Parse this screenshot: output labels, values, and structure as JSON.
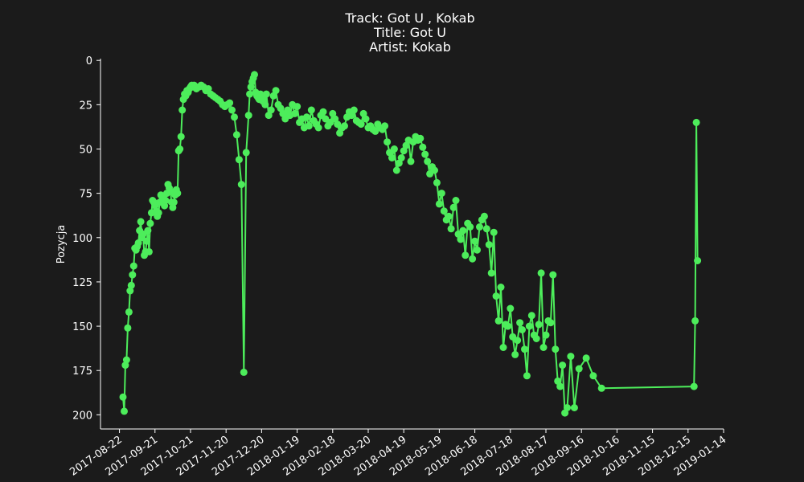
{
  "chart_data": {
    "type": "line",
    "title_lines": [
      "Track:  Got U  , Kokab",
      "Title:  Got U",
      "Artist:  Kokab"
    ],
    "xlabel": "",
    "ylabel": "Pozycja",
    "y_inverted": true,
    "ylim": [
      208,
      -1
    ],
    "yticks": [
      0,
      25,
      50,
      75,
      100,
      125,
      150,
      175,
      200
    ],
    "xlim": [
      "2017-08-06",
      "2019-01-14"
    ],
    "xticks": [
      "2017-08-22",
      "2017-09-21",
      "2017-10-21",
      "2017-11-20",
      "2017-12-20",
      "2018-01-19",
      "2018-02-18",
      "2018-03-20",
      "2018-04-19",
      "2018-05-19",
      "2018-06-18",
      "2018-07-18",
      "2018-08-17",
      "2018-09-16",
      "2018-10-16",
      "2018-11-15",
      "2018-12-15",
      "2019-01-14"
    ],
    "line_color": "#4ded5b",
    "grid": false,
    "series": [
      {
        "name": "Pozycja",
        "dates": [
          "2017-08-25",
          "2017-08-26",
          "2017-08-27",
          "2017-08-28",
          "2017-08-29",
          "2017-08-30",
          "2017-08-31",
          "2017-09-01",
          "2017-09-02",
          "2017-09-03",
          "2017-09-04",
          "2017-09-05",
          "2017-09-06",
          "2017-09-07",
          "2017-09-08",
          "2017-09-09",
          "2017-09-10",
          "2017-09-11",
          "2017-09-12",
          "2017-09-13",
          "2017-09-14",
          "2017-09-15",
          "2017-09-16",
          "2017-09-17",
          "2017-09-18",
          "2017-09-19",
          "2017-09-20",
          "2017-09-21",
          "2017-09-22",
          "2017-09-23",
          "2017-09-24",
          "2017-09-25",
          "2017-09-26",
          "2017-09-27",
          "2017-09-28",
          "2017-09-29",
          "2017-09-30",
          "2017-10-01",
          "2017-10-02",
          "2017-10-03",
          "2017-10-04",
          "2017-10-05",
          "2017-10-06",
          "2017-10-07",
          "2017-10-08",
          "2017-10-09",
          "2017-10-10",
          "2017-10-11",
          "2017-10-12",
          "2017-10-13",
          "2017-10-14",
          "2017-10-15",
          "2017-10-16",
          "2017-10-17",
          "2017-10-18",
          "2017-10-19",
          "2017-10-20",
          "2017-10-21",
          "2017-10-22",
          "2017-10-23",
          "2017-10-24",
          "2017-10-25",
          "2017-10-26",
          "2017-10-28",
          "2017-10-30",
          "2017-11-01",
          "2017-11-03",
          "2017-11-05",
          "2017-11-07",
          "2017-11-09",
          "2017-11-11",
          "2017-11-13",
          "2017-11-15",
          "2017-11-17",
          "2017-11-19",
          "2017-11-21",
          "2017-11-23",
          "2017-11-25",
          "2017-11-27",
          "2017-11-29",
          "2017-12-01",
          "2017-12-03",
          "2017-12-05",
          "2017-12-07",
          "2017-12-09",
          "2017-12-10",
          "2017-12-11",
          "2017-12-12",
          "2017-12-13",
          "2017-12-14",
          "2017-12-15",
          "2017-12-16",
          "2017-12-17",
          "2017-12-18",
          "2017-12-19",
          "2017-12-20",
          "2017-12-21",
          "2017-12-22",
          "2017-12-23",
          "2017-12-24",
          "2017-12-26",
          "2017-12-28",
          "2017-12-30",
          "2018-01-01",
          "2018-01-03",
          "2018-01-05",
          "2018-01-07",
          "2018-01-09",
          "2018-01-11",
          "2018-01-13",
          "2018-01-15",
          "2018-01-17",
          "2018-01-19",
          "2018-01-21",
          "2018-01-23",
          "2018-01-25",
          "2018-01-27",
          "2018-01-29",
          "2018-01-31",
          "2018-02-02",
          "2018-02-04",
          "2018-02-06",
          "2018-02-08",
          "2018-02-10",
          "2018-02-12",
          "2018-02-14",
          "2018-02-16",
          "2018-02-18",
          "2018-02-20",
          "2018-02-22",
          "2018-02-24",
          "2018-02-26",
          "2018-02-28",
          "2018-03-02",
          "2018-03-04",
          "2018-03-06",
          "2018-03-08",
          "2018-03-10",
          "2018-03-12",
          "2018-03-14",
          "2018-03-16",
          "2018-03-18",
          "2018-03-20",
          "2018-03-22",
          "2018-03-24",
          "2018-03-26",
          "2018-03-28",
          "2018-03-30",
          "2018-04-01",
          "2018-04-03",
          "2018-04-05",
          "2018-04-07",
          "2018-04-09",
          "2018-04-11",
          "2018-04-13",
          "2018-04-15",
          "2018-04-17",
          "2018-04-19",
          "2018-04-21",
          "2018-04-23",
          "2018-04-25",
          "2018-04-27",
          "2018-04-29",
          "2018-05-01",
          "2018-05-03",
          "2018-05-05",
          "2018-05-07",
          "2018-05-09",
          "2018-05-11",
          "2018-05-13",
          "2018-05-15",
          "2018-05-17",
          "2018-05-19",
          "2018-05-21",
          "2018-05-23",
          "2018-05-25",
          "2018-05-27",
          "2018-05-29",
          "2018-05-31",
          "2018-06-02",
          "2018-06-04",
          "2018-06-06",
          "2018-06-08",
          "2018-06-10",
          "2018-06-12",
          "2018-06-14",
          "2018-06-16",
          "2018-06-18",
          "2018-06-20",
          "2018-06-22",
          "2018-06-24",
          "2018-06-26",
          "2018-06-28",
          "2018-06-30",
          "2018-07-02",
          "2018-07-04",
          "2018-07-06",
          "2018-07-08",
          "2018-07-10",
          "2018-07-12",
          "2018-07-14",
          "2018-07-16",
          "2018-07-18",
          "2018-07-20",
          "2018-07-22",
          "2018-07-24",
          "2018-07-26",
          "2018-07-28",
          "2018-07-30",
          "2018-08-01",
          "2018-08-03",
          "2018-08-05",
          "2018-08-07",
          "2018-08-09",
          "2018-08-11",
          "2018-08-13",
          "2018-08-15",
          "2018-08-17",
          "2018-08-19",
          "2018-08-21",
          "2018-08-23",
          "2018-08-25",
          "2018-08-27",
          "2018-08-29",
          "2018-08-31",
          "2018-09-02",
          "2018-09-04",
          "2018-09-07",
          "2018-09-10",
          "2018-09-14",
          "2018-09-20",
          "2018-09-26",
          "2018-10-03",
          "2018-12-20",
          "2018-12-21",
          "2018-12-22",
          "2018-12-23"
        ],
        "values": [
          190,
          198,
          172,
          169,
          151,
          142,
          130,
          127,
          121,
          116,
          106,
          107,
          105,
          103,
          96,
          91,
          100,
          98,
          110,
          108,
          102,
          96,
          108,
          92,
          86,
          79,
          80,
          82,
          85,
          88,
          86,
          80,
          76,
          77,
          80,
          82,
          79,
          75,
          70,
          72,
          74,
          80,
          83,
          80,
          76,
          73,
          75,
          51,
          50,
          43,
          28,
          22,
          19,
          20,
          17,
          18,
          16,
          15,
          14,
          15,
          14,
          15,
          16,
          15,
          14,
          15,
          17,
          16,
          19,
          20,
          21,
          22,
          23,
          25,
          26,
          25,
          24,
          28,
          32,
          42,
          56,
          70,
          176,
          52,
          31,
          19,
          15,
          12,
          10,
          8,
          18,
          20,
          21,
          22,
          19,
          22,
          23,
          22,
          25,
          19,
          31,
          28,
          20,
          17,
          25,
          27,
          30,
          33,
          28,
          31,
          25,
          30,
          26,
          35,
          33,
          38,
          32,
          37,
          28,
          34,
          36,
          38,
          31,
          29,
          33,
          37,
          35,
          30,
          33,
          36,
          41,
          38,
          37,
          32,
          29,
          31,
          28,
          34,
          35,
          36,
          30,
          33,
          38,
          37,
          39,
          40,
          36,
          38,
          39,
          37,
          46,
          52,
          55,
          50,
          62,
          58,
          55,
          51,
          48,
          45,
          57,
          46,
          43,
          45,
          44,
          49,
          53,
          57,
          64,
          60,
          62,
          69,
          81,
          75,
          85,
          90,
          88,
          95,
          83,
          79,
          98,
          101,
          96,
          110,
          92,
          94,
          112,
          102,
          107,
          94,
          90,
          88,
          95,
          104,
          120,
          97,
          133,
          147,
          128,
          162,
          149,
          150,
          140,
          156,
          166,
          158,
          148,
          152,
          163,
          178,
          150,
          144,
          155,
          157,
          149,
          120,
          162,
          155,
          147,
          148,
          121,
          163,
          181,
          184,
          172,
          199,
          196,
          167,
          196,
          174,
          168,
          178,
          185,
          184,
          147,
          35,
          113
        ]
      }
    ]
  }
}
